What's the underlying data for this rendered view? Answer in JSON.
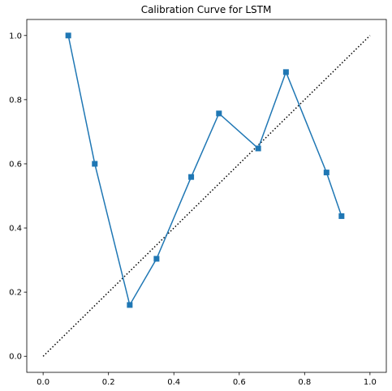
{
  "chart_data": {
    "type": "line",
    "title": "Calibration Curve for LSTM",
    "xlabel": "",
    "ylabel": "",
    "xlim": [
      -0.05,
      1.05
    ],
    "ylim": [
      -0.05,
      1.05
    ],
    "x_ticks": [
      "0.0",
      "0.2",
      "0.4",
      "0.6",
      "0.8",
      "1.0"
    ],
    "y_ticks": [
      "0.0",
      "0.2",
      "0.4",
      "0.6",
      "0.8",
      "1.0"
    ],
    "grid": false,
    "legend": "none",
    "series": [
      {
        "style": "solid line with square markers",
        "color": "#1f77b4",
        "points": [
          {
            "x": 0.077,
            "y": 1.0
          },
          {
            "x": 0.158,
            "y": 0.6
          },
          {
            "x": 0.265,
            "y": 0.16
          },
          {
            "x": 0.347,
            "y": 0.304
          },
          {
            "x": 0.453,
            "y": 0.559
          },
          {
            "x": 0.538,
            "y": 0.757
          },
          {
            "x": 0.658,
            "y": 0.648
          },
          {
            "x": 0.743,
            "y": 0.886
          },
          {
            "x": 0.867,
            "y": 0.573
          },
          {
            "x": 0.913,
            "y": 0.437
          }
        ]
      },
      {
        "style": "dotted reference line",
        "color": "#000000",
        "points": [
          {
            "x": 0.0,
            "y": 0.0
          },
          {
            "x": 1.0,
            "y": 1.0
          }
        ]
      }
    ]
  }
}
